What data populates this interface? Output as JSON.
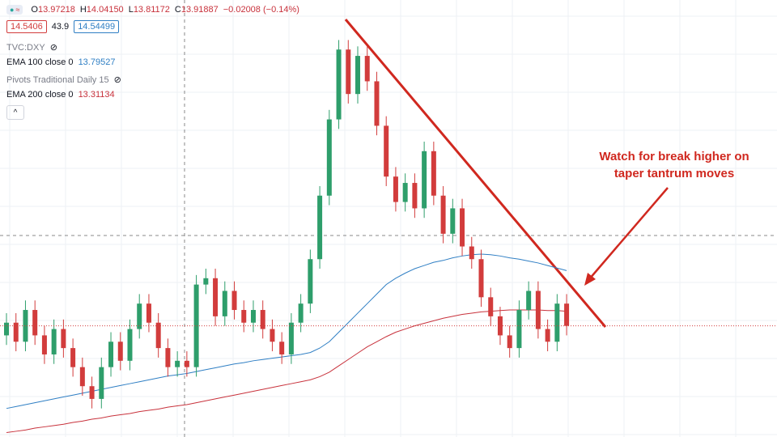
{
  "chart_data": {
    "type": "candlestick",
    "header": {
      "items": [
        {
          "label": "O",
          "value": "13.97218"
        },
        {
          "label": "H",
          "value": "14.04150"
        },
        {
          "label": "L",
          "value": "13.81172"
        },
        {
          "label": "C",
          "value": "13.91887"
        }
      ],
      "change": "−0.02008 (−0.14%)",
      "bid": "14.5406",
      "spread": "43.9",
      "ask": "14.54499"
    },
    "symbol": "TVC:DXY",
    "pivots": "Pivots Traditional Daily 15",
    "annotation": [
      "Watch for break higher on",
      "taper tantrum moves"
    ],
    "ylim": [
      12.8,
      19.68
    ],
    "grid": true,
    "up_color": "#2e9e6b",
    "down_color": "#d23c3c",
    "open": [
      14.4,
      14.6,
      14.3,
      14.8,
      14.4,
      14.1,
      14.5,
      14.2,
      13.9,
      13.6,
      13.4,
      13.9,
      14.3,
      14.0,
      14.5,
      14.9,
      14.6,
      14.2,
      13.9,
      14.0,
      13.9,
      15.2,
      15.3,
      14.7,
      15.1,
      14.8,
      14.6,
      14.8,
      14.5,
      14.3,
      14.1,
      14.6,
      14.9,
      15.6,
      16.6,
      17.8,
      18.9,
      18.2,
      18.8,
      18.4,
      17.7,
      16.9,
      16.5,
      16.8,
      16.4,
      17.3,
      16.6,
      16.0,
      16.4,
      15.8,
      15.6,
      15.0,
      14.7,
      14.4,
      14.2,
      14.8,
      15.1,
      14.5,
      14.3,
      14.9
    ],
    "high": [
      14.75,
      14.75,
      14.95,
      14.95,
      14.55,
      14.65,
      14.65,
      14.35,
      14.05,
      13.75,
      14.05,
      14.45,
      14.45,
      14.65,
      15.05,
      15.05,
      14.75,
      14.35,
      14.15,
      14.15,
      15.35,
      15.45,
      15.45,
      15.25,
      15.25,
      14.95,
      14.95,
      14.95,
      14.65,
      14.45,
      14.75,
      15.05,
      15.75,
      16.75,
      17.95,
      19.05,
      19.05,
      18.95,
      18.95,
      18.55,
      17.85,
      17.05,
      16.95,
      16.95,
      17.45,
      17.45,
      16.75,
      16.55,
      16.55,
      15.95,
      15.75,
      15.15,
      14.85,
      14.55,
      14.95,
      15.25,
      15.25,
      14.65,
      15.05,
      15.05
    ],
    "low": [
      14.25,
      14.15,
      14.15,
      14.25,
      13.95,
      13.95,
      14.05,
      13.75,
      13.45,
      13.25,
      13.25,
      13.75,
      13.85,
      13.85,
      14.35,
      14.45,
      14.05,
      13.75,
      13.75,
      13.75,
      13.75,
      15.05,
      14.55,
      14.55,
      14.65,
      14.45,
      14.45,
      14.35,
      14.15,
      13.95,
      13.95,
      14.45,
      14.75,
      15.45,
      16.45,
      17.65,
      18.05,
      18.05,
      18.25,
      17.55,
      16.75,
      16.35,
      16.35,
      16.25,
      16.25,
      16.45,
      15.85,
      15.85,
      15.65,
      15.45,
      14.85,
      14.55,
      14.25,
      14.05,
      14.05,
      14.65,
      14.35,
      14.15,
      14.15,
      14.4
    ],
    "close": [
      14.6,
      14.3,
      14.8,
      14.4,
      14.1,
      14.5,
      14.2,
      13.9,
      13.6,
      13.4,
      13.9,
      14.3,
      14.0,
      14.5,
      14.9,
      14.6,
      14.2,
      13.9,
      14.0,
      13.9,
      15.2,
      15.3,
      14.7,
      15.1,
      14.8,
      14.6,
      14.8,
      14.5,
      14.3,
      14.1,
      14.6,
      14.9,
      15.6,
      16.6,
      17.8,
      18.9,
      18.2,
      18.8,
      18.4,
      17.7,
      16.9,
      16.5,
      16.8,
      16.4,
      17.3,
      16.6,
      16.0,
      16.4,
      15.8,
      15.6,
      15.0,
      14.7,
      14.4,
      14.2,
      14.8,
      15.1,
      14.5,
      14.3,
      14.9,
      14.55
    ],
    "series": [
      {
        "name": "EMA 100 close 0",
        "legend_value": "13.79527",
        "color": "#2f7fc4",
        "values": [
          13.25,
          13.28,
          13.31,
          13.34,
          13.37,
          13.4,
          13.43,
          13.46,
          13.49,
          13.52,
          13.55,
          13.58,
          13.61,
          13.64,
          13.67,
          13.7,
          13.73,
          13.76,
          13.78,
          13.8,
          13.83,
          13.86,
          13.89,
          13.92,
          13.95,
          13.97,
          14.0,
          14.02,
          14.04,
          14.06,
          14.08,
          14.1,
          14.13,
          14.2,
          14.3,
          14.45,
          14.6,
          14.75,
          14.9,
          15.05,
          15.2,
          15.3,
          15.38,
          15.45,
          15.5,
          15.55,
          15.58,
          15.62,
          15.65,
          15.67,
          15.68,
          15.67,
          15.65,
          15.62,
          15.6,
          15.57,
          15.54,
          15.5,
          15.46,
          15.42
        ]
      },
      {
        "name": "EMA 200 close 0",
        "legend_value": "13.31134",
        "color": "#c8323c",
        "values": [
          12.87,
          12.89,
          12.91,
          12.94,
          12.96,
          12.98,
          13.0,
          13.03,
          13.05,
          13.08,
          13.1,
          13.13,
          13.15,
          13.17,
          13.2,
          13.22,
          13.24,
          13.27,
          13.29,
          13.31,
          13.34,
          13.37,
          13.4,
          13.43,
          13.46,
          13.49,
          13.52,
          13.55,
          13.58,
          13.61,
          13.64,
          13.67,
          13.7,
          13.75,
          13.82,
          13.92,
          14.02,
          14.12,
          14.22,
          14.3,
          14.38,
          14.45,
          14.5,
          14.55,
          14.59,
          14.63,
          14.67,
          14.7,
          14.73,
          14.75,
          14.77,
          14.78,
          14.79,
          14.8,
          14.8,
          14.8,
          14.8,
          14.79,
          14.79,
          14.78
        ]
      }
    ]
  }
}
